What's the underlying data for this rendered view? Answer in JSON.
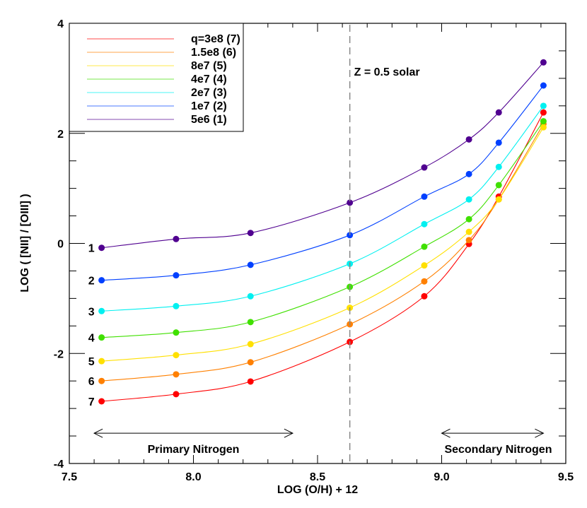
{
  "chart_data": {
    "type": "line",
    "xlabel": "LOG (O/H) + 12",
    "ylabel": "LOG ( [NII] / [OIII] )",
    "xlim": [
      7.5,
      9.5
    ],
    "ylim": [
      -4,
      4
    ],
    "xticks": [
      "7.5",
      "8.0",
      "8.5",
      "9.0",
      "9.5"
    ],
    "yticks": [
      "-4",
      "-2",
      "0",
      "2",
      "4"
    ],
    "grid": false,
    "legend_placement": "top-left",
    "x": [
      7.63,
      7.93,
      8.23,
      8.63,
      8.93,
      9.11,
      9.23,
      9.41
    ],
    "series": [
      {
        "name": "q=3e8 (7)",
        "label": "7",
        "color": "#ff0000",
        "values": [
          -2.87,
          -2.74,
          -2.51,
          -1.79,
          -0.96,
          -0.01,
          0.85,
          2.38
        ]
      },
      {
        "name": "1.5e8 (6)",
        "label": "6",
        "color": "#ff8000",
        "values": [
          -2.5,
          -2.38,
          -2.16,
          -1.47,
          -0.69,
          0.06,
          0.8,
          2.17
        ]
      },
      {
        "name": "8e7 (5)",
        "label": "5",
        "color": "#ffe000",
        "values": [
          -2.14,
          -2.03,
          -1.83,
          -1.17,
          -0.4,
          0.21,
          0.8,
          2.11
        ]
      },
      {
        "name": "4e7 (4)",
        "label": "4",
        "color": "#40e000",
        "values": [
          -1.71,
          -1.62,
          -1.43,
          -0.79,
          -0.06,
          0.44,
          1.06,
          2.22
        ]
      },
      {
        "name": "2e7 (3)",
        "label": "3",
        "color": "#00f0f0",
        "values": [
          -1.23,
          -1.14,
          -0.96,
          -0.37,
          0.35,
          0.8,
          1.39,
          2.5
        ]
      },
      {
        "name": "1e7 (2)",
        "label": "2",
        "color": "#0040ff",
        "values": [
          -0.67,
          -0.58,
          -0.39,
          0.15,
          0.85,
          1.26,
          1.83,
          2.87
        ]
      },
      {
        "name": "5e6 (1)",
        "label": "1",
        "color": "#500090",
        "values": [
          -0.08,
          0.08,
          0.19,
          0.74,
          1.38,
          1.89,
          2.38,
          3.29
        ]
      }
    ],
    "annotations": {
      "solar_line_x": 8.63,
      "solar_label": "Z = 0.5 solar",
      "primary": {
        "text": "Primary Nitrogen",
        "x_range": [
          7.6,
          8.4
        ]
      },
      "secondary": {
        "text": "Secondary Nitrogen",
        "x_range": [
          9.0,
          9.41
        ]
      }
    }
  }
}
